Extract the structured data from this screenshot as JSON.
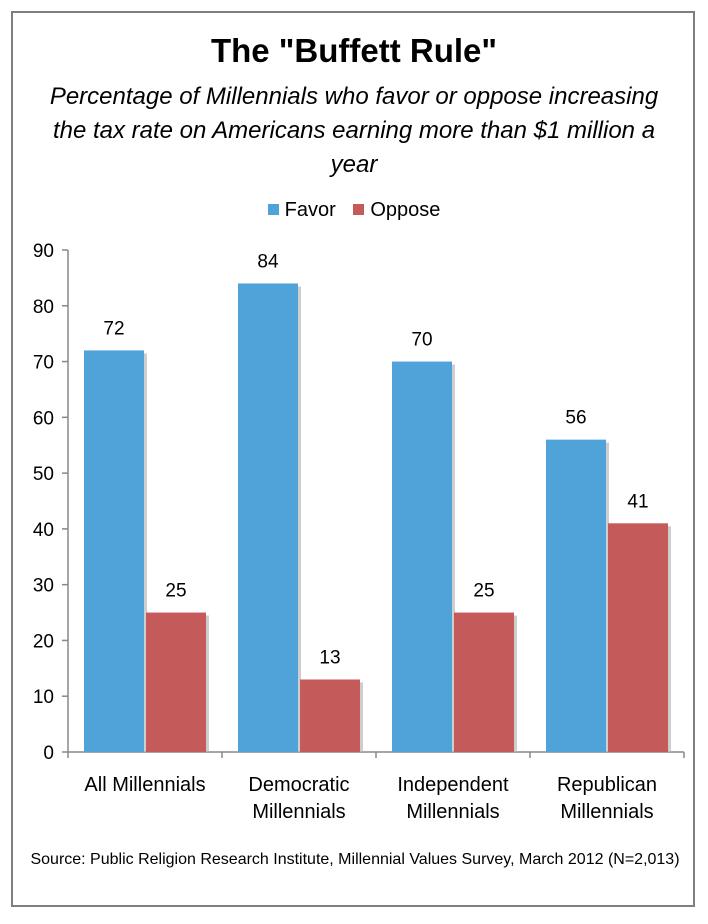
{
  "chart_data": {
    "type": "bar",
    "title": "The \"Buffett Rule\"",
    "subtitle": "Percentage of Millennials who favor or oppose increasing the tax rate on Americans earning more than $1 million a year",
    "categories": [
      [
        "All Millennials"
      ],
      [
        "Democratic",
        "Millennials"
      ],
      [
        "Independent",
        "Millennials"
      ],
      [
        "Republican",
        "Millennials"
      ]
    ],
    "series": [
      {
        "name": "Favor",
        "color": "#4fa3d9",
        "values": [
          72,
          84,
          70,
          56
        ]
      },
      {
        "name": "Oppose",
        "color": "#c55a5a",
        "values": [
          25,
          13,
          25,
          41
        ]
      }
    ],
    "ylim": [
      0,
      90
    ],
    "yticks": [
      0,
      10,
      20,
      30,
      40,
      50,
      60,
      70,
      80,
      90
    ],
    "legend_position": "top",
    "grid": false,
    "source": "Source: Public Religion Research Institute, Millennial Values Survey, March 2012 (N=2,013)"
  }
}
